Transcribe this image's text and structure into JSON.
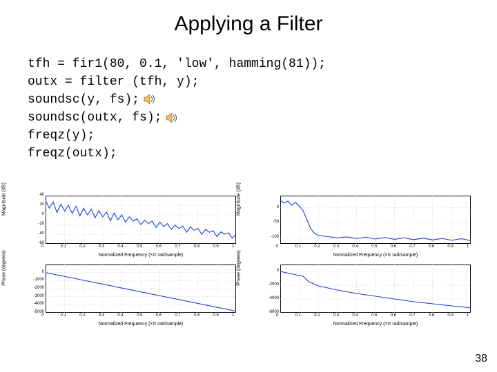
{
  "title": "Applying a Filter",
  "code_lines": [
    "tfh = fir1(80, 0.1, 'low', hamming(81));",
    "outx = filter (tfh, y);",
    "soundsc(y, fs);",
    "soundsc(outx, fs);",
    "freqz(y);",
    "freqz(outx);"
  ],
  "speaker_icon_lines": [
    2,
    3
  ],
  "speaker_icon": {
    "fill": "#f5c242",
    "stroke": "#555555"
  },
  "slide_number": "38",
  "chart_common": {
    "line_color": "#1d3fd6",
    "axis_color": "#000000",
    "grid_color": "#b8b8b8",
    "background": "#ffffff",
    "axis_linewidth": 1,
    "line_width": 1.1,
    "tick_fontsize": 6,
    "label_fontsize": 7,
    "xlim": [
      0,
      1
    ],
    "xticks": [
      0,
      0.1,
      0.2,
      0.3,
      0.4,
      0.5,
      0.6,
      0.7,
      0.8,
      0.9,
      1
    ],
    "xtick_labels": [
      "0",
      "0.1",
      "0.2",
      "0.3",
      "0.4",
      "0.5",
      "0.6",
      "0.7",
      "0.8",
      "0.9",
      "1"
    ],
    "xlabel": "Normalized Frequency (×π rad/sample)"
  },
  "left_group": {
    "mag": {
      "ylabel": "Magnitude (dB)",
      "ylim": [
        -60,
        40
      ],
      "yticks": [
        -60,
        -40,
        -20,
        0,
        20,
        40
      ],
      "x": [
        0,
        0.02,
        0.04,
        0.06,
        0.08,
        0.1,
        0.12,
        0.14,
        0.16,
        0.18,
        0.2,
        0.22,
        0.24,
        0.26,
        0.28,
        0.3,
        0.32,
        0.34,
        0.36,
        0.38,
        0.4,
        0.42,
        0.44,
        0.46,
        0.48,
        0.5,
        0.52,
        0.54,
        0.56,
        0.58,
        0.6,
        0.62,
        0.64,
        0.66,
        0.68,
        0.7,
        0.72,
        0.74,
        0.76,
        0.78,
        0.8,
        0.82,
        0.84,
        0.86,
        0.88,
        0.9,
        0.92,
        0.94,
        0.96,
        0.98,
        1
      ],
      "y": [
        30,
        14,
        27,
        5,
        22,
        8,
        20,
        3,
        18,
        -2,
        14,
        0,
        12,
        -6,
        9,
        -4,
        6,
        -12,
        4,
        -10,
        0,
        -15,
        -4,
        -13,
        -8,
        -20,
        -11,
        -18,
        -13,
        -26,
        -15,
        -24,
        -18,
        -30,
        -21,
        -28,
        -23,
        -36,
        -25,
        -32,
        -28,
        -40,
        -30,
        -36,
        -33,
        -45,
        -35,
        -40,
        -37,
        -48,
        -40
      ]
    },
    "phase": {
      "ylabel": "Phase (degrees)",
      "ylim": [
        -5000,
        1000
      ],
      "yticks": [
        -5000,
        -4000,
        -3000,
        -2000,
        -1000,
        0
      ],
      "type": "line",
      "x": [
        0,
        1
      ],
      "y": [
        0,
        -4800
      ]
    }
  },
  "right_group": {
    "mag": {
      "ylabel": "Magnitude (dB)",
      "ylim": [
        -120,
        40
      ],
      "yticks": [
        -100,
        -50,
        0
      ],
      "x": [
        0,
        0.02,
        0.04,
        0.06,
        0.08,
        0.1,
        0.12,
        0.14,
        0.16,
        0.18,
        0.2,
        0.25,
        0.3,
        0.35,
        0.4,
        0.45,
        0.5,
        0.55,
        0.6,
        0.65,
        0.7,
        0.75,
        0.8,
        0.85,
        0.9,
        0.95,
        1
      ],
      "y": [
        25,
        15,
        22,
        8,
        18,
        5,
        -10,
        -40,
        -70,
        -85,
        -92,
        -96,
        -100,
        -97,
        -102,
        -98,
        -104,
        -99,
        -105,
        -100,
        -106,
        -101,
        -107,
        -102,
        -108,
        -103,
        -109
      ]
    },
    "phase": {
      "ylabel": "Phase (degrees)",
      "ylim": [
        -6000,
        1000
      ],
      "yticks": [
        -6000,
        -4000,
        -2000,
        0
      ],
      "type": "multi",
      "x": [
        0,
        0.05,
        0.1,
        0.12,
        0.15,
        0.2,
        0.3,
        0.4,
        0.5,
        0.6,
        0.7,
        0.8,
        0.9,
        1
      ],
      "y": [
        0,
        -300,
        -600,
        -700,
        -1500,
        -2100,
        -2700,
        -3200,
        -3600,
        -4000,
        -4400,
        -4700,
        -5000,
        -5300
      ]
    }
  }
}
